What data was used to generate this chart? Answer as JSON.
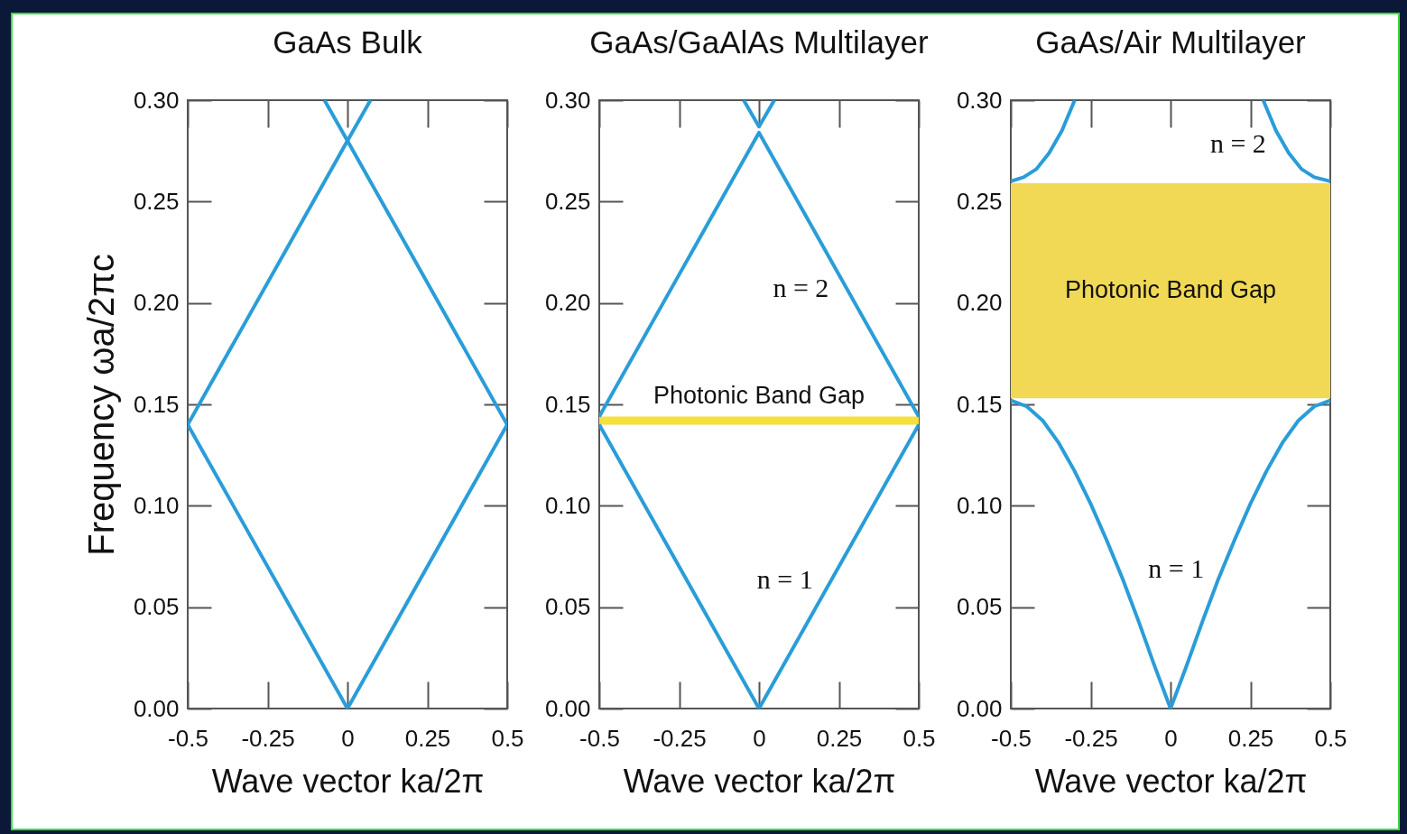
{
  "chart_data": [
    {
      "type": "line",
      "title": "GaAs Bulk",
      "xlabel": "Wave vector ka/2π",
      "ylabel": "Frequency ωa/2πc",
      "xlim": [
        -0.5,
        0.5
      ],
      "ylim": [
        0,
        0.3
      ],
      "xticks": [
        -0.5,
        -0.25,
        0,
        0.25,
        0.5
      ],
      "yticks": [
        {
          "value": 0,
          "label": "0.00"
        },
        0.05,
        {
          "value": 0.1,
          "label": "0.10"
        },
        0.15,
        {
          "value": 0.2,
          "label": "0.20"
        },
        0.25,
        {
          "value": 0.3,
          "label": "0.30"
        }
      ],
      "series": [
        {
          "color": "#2a9dd8",
          "x": [
            -0.5,
            0,
            0.5
          ],
          "values": [
            0.14,
            0,
            0.14
          ]
        },
        {
          "color": "#2a9dd8",
          "x": [
            -0.5,
            0,
            0.5
          ],
          "values": [
            0.14,
            0.28,
            0.14
          ]
        },
        {
          "color": "#2a9dd8",
          "x": [
            -0.072,
            0,
            0.072
          ],
          "values": [
            0.3,
            0.28,
            0.3
          ]
        }
      ]
    },
    {
      "type": "line",
      "title": "GaAs/GaAlAs Multilayer",
      "xlabel": "Wave vector ka/2π",
      "xlim": [
        -0.5,
        0.5
      ],
      "ylim": [
        0,
        0.3
      ],
      "xticks": [
        -0.5,
        -0.25,
        0,
        0.25,
        0.5
      ],
      "yticks": [
        {
          "value": 0,
          "label": "0.00"
        },
        0.05,
        {
          "value": 0.1,
          "label": "0.10"
        },
        0.15,
        {
          "value": 0.2,
          "label": "0.20"
        },
        0.25,
        {
          "value": 0.3,
          "label": "0.30"
        }
      ],
      "series": [
        {
          "name": "n = 1",
          "color": "#2a9dd8",
          "x": [
            -0.5,
            0,
            0.5
          ],
          "values": [
            0.14,
            0,
            0.14
          ]
        },
        {
          "name": "n = 2",
          "color": "#2a9dd8",
          "x": [
            -0.5,
            0,
            0.5
          ],
          "values": [
            0.144,
            0.284,
            0.144
          ]
        },
        {
          "color": "#2a9dd8",
          "x": [
            -0.048,
            0,
            0.048
          ],
          "values": [
            0.3,
            0.287,
            0.3
          ]
        }
      ],
      "bands": [
        {
          "axis": "y",
          "from": 0.14,
          "to": 0.144,
          "label": "Photonic Band Gap",
          "color": "#f6e03a"
        }
      ]
    },
    {
      "type": "line",
      "title": "GaAs/Air Multilayer",
      "xlabel": "Wave vector ka/2π",
      "xlim": [
        -0.5,
        0.5
      ],
      "ylim": [
        0,
        0.3
      ],
      "xticks": [
        -0.5,
        -0.25,
        0,
        0.25,
        0.5
      ],
      "yticks": [
        {
          "value": 0,
          "label": "0.00"
        },
        0.05,
        {
          "value": 0.1,
          "label": "0.10"
        },
        0.15,
        {
          "value": 0.2,
          "label": "0.20"
        },
        0.25,
        {
          "value": 0.3,
          "label": "0.30"
        }
      ],
      "series": [
        {
          "name": "n = 1",
          "color": "#2a9dd8",
          "x": [
            -0.5,
            -0.45,
            -0.4,
            -0.35,
            -0.3,
            -0.25,
            -0.2,
            -0.15,
            -0.1,
            -0.05,
            0,
            0.05,
            0.1,
            0.15,
            0.2,
            0.25,
            0.3,
            0.35,
            0.4,
            0.45,
            0.5
          ],
          "values": [
            0.152,
            0.149,
            0.142,
            0.131,
            0.117,
            0.101,
            0.083,
            0.064,
            0.043,
            0.021,
            0,
            0.021,
            0.043,
            0.064,
            0.083,
            0.101,
            0.117,
            0.131,
            0.142,
            0.149,
            0.152
          ]
        },
        {
          "name": "n = 2",
          "color": "#2a9dd8",
          "x": [
            -0.5,
            -0.46,
            -0.42,
            -0.38,
            -0.34,
            -0.3,
            0,
            0.29,
            0.33,
            0.37,
            0.41,
            0.45,
            0.5
          ],
          "values": [
            0.26,
            0.262,
            0.266,
            0.274,
            0.285,
            0.3,
            null,
            0.3,
            0.285,
            0.274,
            0.266,
            0.262,
            0.26
          ]
        }
      ],
      "bands": [
        {
          "axis": "y",
          "from": 0.153,
          "to": 0.259,
          "label": "Photonic Band Gap",
          "color": "#f2d955"
        }
      ]
    }
  ]
}
